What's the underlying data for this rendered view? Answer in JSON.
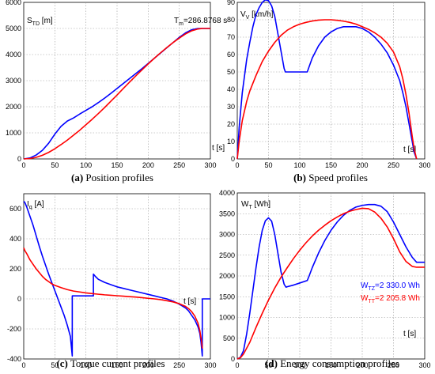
{
  "chart_data": [
    {
      "type": "line",
      "panel": "a",
      "ylabel_main": "S",
      "ylabel_sub": "TD",
      "ylabel_unit": " [m]",
      "xlabel": "t [s]",
      "annotation": {
        "main": "T",
        "sub": "m",
        "value": "=286.8768 s"
      },
      "caption": {
        "letter": "(a)",
        "text": " Position profiles"
      },
      "xlim": [
        0,
        300
      ],
      "ylim": [
        0,
        6000
      ],
      "xticks": [
        0,
        50,
        100,
        150,
        200,
        250,
        300
      ],
      "yticks": [
        0,
        1000,
        2000,
        3000,
        4000,
        5000,
        6000
      ],
      "grid": true,
      "series": [
        {
          "color": "#0000ff",
          "x": [
            0,
            10,
            20,
            30,
            40,
            50,
            60,
            70,
            80,
            90,
            100,
            110,
            120,
            130,
            140,
            150,
            160,
            170,
            180,
            190,
            200,
            210,
            220,
            230,
            240,
            250,
            260,
            270,
            280,
            287,
            300
          ],
          "y": [
            0,
            35,
            150,
            330,
            600,
            950,
            1250,
            1450,
            1570,
            1720,
            1860,
            2000,
            2160,
            2330,
            2510,
            2700,
            2890,
            3080,
            3270,
            3460,
            3660,
            3860,
            4060,
            4260,
            4460,
            4660,
            4830,
            4950,
            5000,
            5000,
            5000
          ]
        },
        {
          "color": "#ff0000",
          "x": [
            0,
            10,
            20,
            30,
            40,
            50,
            60,
            70,
            80,
            90,
            100,
            110,
            120,
            130,
            140,
            150,
            160,
            170,
            180,
            190,
            200,
            210,
            220,
            230,
            240,
            250,
            260,
            270,
            280,
            287,
            300
          ],
          "y": [
            0,
            15,
            60,
            140,
            250,
            390,
            550,
            720,
            910,
            1100,
            1310,
            1520,
            1740,
            1970,
            2210,
            2450,
            2700,
            2940,
            3180,
            3410,
            3640,
            3860,
            4070,
            4270,
            4460,
            4630,
            4790,
            4910,
            4980,
            5000,
            5000
          ]
        }
      ]
    },
    {
      "type": "line",
      "panel": "b",
      "ylabel_main": "V",
      "ylabel_sub": "V",
      "ylabel_unit": " [km/h]",
      "xlabel": "t [s]",
      "caption": {
        "letter": "(b)",
        "text": " Speed profiles"
      },
      "xlim": [
        0,
        300
      ],
      "ylim": [
        0,
        90
      ],
      "xticks": [
        0,
        50,
        100,
        150,
        200,
        250,
        300
      ],
      "yticks": [
        0,
        10,
        20,
        30,
        40,
        50,
        60,
        70,
        80,
        90
      ],
      "grid": true,
      "series": [
        {
          "color": "#0000ff",
          "x": [
            0,
            3,
            8,
            15,
            20,
            25,
            30,
            35,
            40,
            45,
            50,
            55,
            60,
            65,
            70,
            75,
            77,
            80,
            90,
            100,
            110,
            112,
            115,
            120,
            130,
            140,
            150,
            160,
            170,
            180,
            190,
            200,
            210,
            220,
            230,
            240,
            250,
            260,
            265,
            270,
            275,
            280,
            283,
            286,
            287
          ],
          "y": [
            0,
            18,
            38,
            57,
            67,
            76,
            83,
            87,
            90,
            91.5,
            91,
            88,
            82,
            72,
            62,
            52,
            50,
            50,
            50,
            50,
            50,
            50,
            53,
            58,
            65,
            70,
            73,
            75,
            76,
            76,
            76,
            75,
            73,
            70,
            66,
            61,
            54,
            45,
            38,
            30,
            20,
            10,
            4,
            1,
            0
          ]
        },
        {
          "color": "#ff0000",
          "x": [
            0,
            3,
            8,
            15,
            20,
            30,
            40,
            50,
            60,
            70,
            80,
            90,
            100,
            110,
            120,
            130,
            140,
            150,
            160,
            170,
            180,
            190,
            200,
            210,
            220,
            230,
            240,
            250,
            260,
            265,
            270,
            275,
            280,
            283,
            286,
            287
          ],
          "y": [
            0,
            10,
            22,
            33,
            39,
            48,
            56,
            62,
            67,
            71,
            74,
            76,
            77.5,
            78.5,
            79.3,
            79.8,
            80,
            80,
            79.7,
            79.2,
            78.5,
            77.5,
            76,
            74.5,
            72.5,
            70,
            66.5,
            61.5,
            53,
            46,
            37,
            26,
            13,
            6,
            1.5,
            0
          ]
        }
      ]
    },
    {
      "type": "line",
      "panel": "c",
      "ylabel_main": "I",
      "ylabel_sub": "q",
      "ylabel_unit": " [A]",
      "xlabel": "t [s]",
      "caption": {
        "letter": "(c)",
        "text": " Torque current profiles"
      },
      "xlim": [
        0,
        300
      ],
      "ylim": [
        -400,
        700
      ],
      "xticks": [
        0,
        50,
        100,
        150,
        200,
        250,
        300
      ],
      "yticks": [
        -400,
        -200,
        0,
        200,
        400,
        600
      ],
      "grid": true,
      "series": [
        {
          "color": "#0000ff",
          "x": [
            0,
            2,
            5,
            10,
            15,
            20,
            25,
            30,
            35,
            40,
            45,
            50,
            55,
            60,
            65,
            70,
            75,
            78,
            78.01,
            80,
            90,
            100,
            110,
            112,
            112.01,
            115,
            120,
            130,
            140,
            150,
            160,
            170,
            180,
            190,
            200,
            210,
            220,
            230,
            240,
            250,
            260,
            265,
            270,
            275,
            280,
            283,
            285,
            287,
            287.01,
            300
          ],
          "y": [
            650,
            640,
            610,
            550,
            490,
            420,
            350,
            285,
            225,
            165,
            110,
            55,
            0,
            -55,
            -110,
            -175,
            -250,
            -380,
            20,
            20,
            20,
            20,
            20,
            20,
            165,
            150,
            130,
            110,
            95,
            80,
            70,
            60,
            50,
            40,
            30,
            20,
            10,
            0,
            -15,
            -35,
            -60,
            -80,
            -110,
            -140,
            -185,
            -230,
            -290,
            -380,
            0,
            0
          ]
        },
        {
          "color": "#ff0000",
          "x": [
            0,
            2,
            5,
            10,
            15,
            20,
            25,
            30,
            35,
            40,
            45,
            50,
            60,
            70,
            80,
            90,
            100,
            110,
            120,
            130,
            140,
            150,
            160,
            170,
            180,
            190,
            200,
            210,
            220,
            230,
            240,
            250,
            260,
            265,
            270,
            275,
            280,
            283,
            286,
            287
          ],
          "y": [
            340,
            320,
            300,
            260,
            230,
            200,
            175,
            150,
            130,
            115,
            100,
            90,
            75,
            62,
            52,
            46,
            40,
            35,
            31,
            27,
            24,
            21,
            18,
            15,
            12,
            8,
            4,
            0,
            -5,
            -12,
            -20,
            -32,
            -50,
            -65,
            -85,
            -115,
            -160,
            -210,
            -290,
            -330
          ]
        }
      ]
    },
    {
      "type": "line",
      "panel": "d",
      "ylabel_main": "W",
      "ylabel_sub": "T",
      "ylabel_unit": " [Wh]",
      "xlabel": "t [s]",
      "caption": {
        "letter": "(d)",
        "text": " Energy consumption profiles"
      },
      "xlim": [
        0,
        300
      ],
      "ylim": [
        0,
        4000
      ],
      "xticks": [
        0,
        50,
        100,
        150,
        200,
        250,
        300
      ],
      "yticks": [
        0,
        500,
        1000,
        1500,
        2000,
        2500,
        3000,
        3500,
        4000
      ],
      "grid": true,
      "legend": [
        {
          "main": "W",
          "sub": "TZ",
          "value": "=2 330.0 Wh",
          "color": "#0000ff"
        },
        {
          "main": "W",
          "sub": "TT",
          "value": "=2 205.8 Wh",
          "color": "#ff0000"
        }
      ],
      "series": [
        {
          "color": "#0000ff",
          "x": [
            0,
            5,
            10,
            15,
            20,
            25,
            30,
            35,
            40,
            45,
            50,
            55,
            60,
            65,
            70,
            75,
            78,
            80,
            90,
            100,
            112,
            115,
            120,
            130,
            140,
            150,
            160,
            170,
            180,
            190,
            200,
            210,
            220,
            230,
            240,
            250,
            260,
            270,
            280,
            287,
            300
          ],
          "y": [
            0,
            40,
            200,
            600,
            1100,
            1650,
            2200,
            2700,
            3100,
            3330,
            3400,
            3320,
            3000,
            2550,
            2100,
            1800,
            1730,
            1740,
            1780,
            1830,
            1890,
            2000,
            2200,
            2550,
            2850,
            3100,
            3300,
            3460,
            3580,
            3660,
            3700,
            3720,
            3720,
            3680,
            3550,
            3300,
            3000,
            2700,
            2450,
            2330,
            2330
          ]
        },
        {
          "color": "#ff0000",
          "x": [
            0,
            5,
            10,
            20,
            30,
            40,
            50,
            60,
            70,
            80,
            90,
            100,
            110,
            120,
            130,
            140,
            150,
            160,
            170,
            180,
            190,
            200,
            210,
            220,
            230,
            240,
            250,
            260,
            270,
            280,
            287,
            300
          ],
          "y": [
            0,
            30,
            120,
            400,
            760,
            1100,
            1420,
            1710,
            1970,
            2200,
            2420,
            2620,
            2800,
            2960,
            3100,
            3220,
            3330,
            3420,
            3500,
            3560,
            3600,
            3630,
            3620,
            3540,
            3390,
            3180,
            2900,
            2580,
            2350,
            2230,
            2210,
            2210
          ]
        }
      ]
    }
  ]
}
